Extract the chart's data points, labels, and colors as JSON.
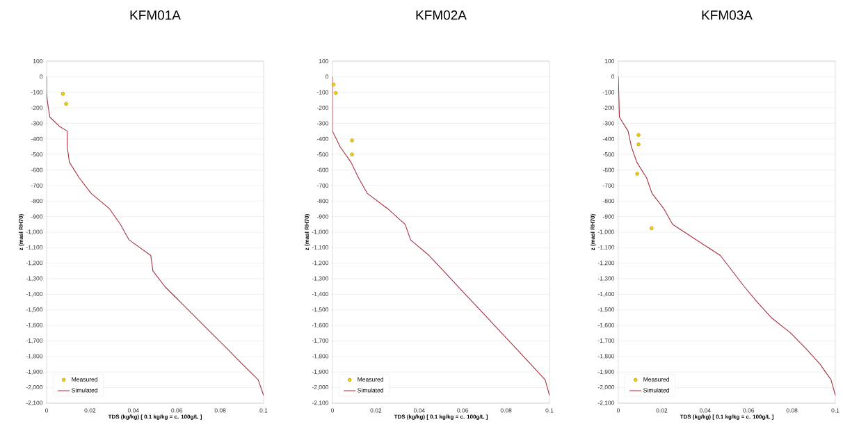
{
  "chart_data": [
    {
      "type": "line",
      "title": "KFM01A",
      "xlabel": "TDS (kg/kg)    [ 0.1 kg/kg = c. 100g/L ]",
      "ylabel": "z (masl RH70)",
      "xlim": [
        0,
        0.1
      ],
      "ylim": [
        -2100,
        100
      ],
      "xticks": [
        0,
        0.02,
        0.04,
        0.06,
        0.08,
        0.1
      ],
      "yticks": [
        {
          "value": -2100,
          "label": "-2,100"
        },
        {
          "value": -2000,
          "label": "-2,000"
        },
        {
          "value": -1900,
          "label": "-1,900"
        },
        {
          "value": -1800,
          "label": "-1,800"
        },
        {
          "value": -1700,
          "label": "-1,700"
        },
        {
          "value": -1600,
          "label": "-1,600"
        },
        {
          "value": -1500,
          "label": "-1,500"
        },
        {
          "value": -1400,
          "label": "-1,400"
        },
        {
          "value": -1300,
          "label": "-1,300"
        },
        {
          "value": -1200,
          "label": "-1,200"
        },
        {
          "value": -1100,
          "label": "-1,100"
        },
        {
          "value": -1000,
          "label": "-1,000"
        },
        -900,
        -800,
        -700,
        -600,
        -500,
        -400,
        -300,
        -200,
        -100,
        0,
        100
      ],
      "grid": "y",
      "legend": "bottom left",
      "series": [
        {
          "name": "Measured",
          "type": "scatter",
          "marker": "circle",
          "color": "#f5d000",
          "x": [
            0.0075,
            0.009
          ],
          "values": [
            -110,
            -175
          ]
        },
        {
          "name": "Simulated",
          "type": "line",
          "marker": "none",
          "color": "#a3303f",
          "x": [
            0,
            0,
            0.0003,
            0.0008,
            0.0015,
            0.006,
            0.0095,
            0.0095,
            0.0105,
            0.015,
            0.0205,
            0.029,
            0.034,
            0.038,
            0.048,
            0.049,
            0.0545,
            0.0617,
            0.0688,
            0.076,
            0.0832,
            0.0903,
            0.0975,
            0.1
          ],
          "values": [
            0,
            -100,
            -150,
            -200,
            -260,
            -320,
            -350,
            -450,
            -550,
            -650,
            -750,
            -850,
            -950,
            -1050,
            -1150,
            -1250,
            -1350,
            -1450,
            -1550,
            -1650,
            -1750,
            -1850,
            -1950,
            -2050
          ]
        }
      ]
    },
    {
      "type": "line",
      "title": "KFM02A",
      "xlabel": "TDS (kg/kg)    [ 0.1 kg/kg = c. 100g/L ]",
      "ylabel": "z (masl RH70)",
      "xlim": [
        0,
        0.1
      ],
      "ylim": [
        -2100,
        100
      ],
      "xticks": [
        0,
        0.02,
        0.04,
        0.06,
        0.08,
        0.1
      ],
      "yticks": [
        {
          "value": -2100,
          "label": "-2,100"
        },
        {
          "value": -2000,
          "label": "-2,000"
        },
        {
          "value": -1900,
          "label": "-1,900"
        },
        {
          "value": -1800,
          "label": "-1,800"
        },
        {
          "value": -1700,
          "label": "-1,700"
        },
        {
          "value": -1600,
          "label": "-1,600"
        },
        {
          "value": -1500,
          "label": "-1,500"
        },
        {
          "value": -1400,
          "label": "-1,400"
        },
        {
          "value": -1300,
          "label": "-1,300"
        },
        {
          "value": -1200,
          "label": "-1,200"
        },
        {
          "value": -1100,
          "label": "-1,100"
        },
        {
          "value": -1000,
          "label": "-1,000"
        },
        -900,
        -800,
        -700,
        -600,
        -500,
        -400,
        -300,
        -200,
        -100,
        0,
        100
      ],
      "grid": "y",
      "legend": "bottom left",
      "series": [
        {
          "name": "Measured",
          "type": "scatter",
          "marker": "circle",
          "color": "#f5d000",
          "x": [
            0.0005,
            0.0015,
            0.009,
            0.009
          ],
          "values": [
            -50,
            -105,
            -410,
            -500
          ]
        },
        {
          "name": "Simulated",
          "type": "line",
          "marker": "none",
          "color": "#a3303f",
          "x": [
            0,
            0,
            0.0035,
            0.0085,
            0.012,
            0.016,
            0.0255,
            0.0335,
            0.036,
            0.0445,
            0.0512,
            0.0579,
            0.0646,
            0.0713,
            0.078,
            0.0847,
            0.0914,
            0.098,
            0.1
          ],
          "values": [
            0,
            -350,
            -450,
            -550,
            -650,
            -750,
            -850,
            -950,
            -1050,
            -1150,
            -1250,
            -1350,
            -1450,
            -1550,
            -1650,
            -1750,
            -1850,
            -1950,
            -2050
          ]
        }
      ]
    },
    {
      "type": "line",
      "title": "KFM03A",
      "xlabel": "TDS (kg/kg)    [ 0.1 kg/kg = c. 100g/L ]",
      "ylabel": "z (masl RH70)",
      "xlim": [
        0,
        0.1
      ],
      "ylim": [
        -2100,
        100
      ],
      "xticks": [
        0,
        0.02,
        0.04,
        0.06,
        0.08,
        0.1
      ],
      "yticks": [
        {
          "value": -2100,
          "label": "-2,100"
        },
        {
          "value": -2000,
          "label": "-2,000"
        },
        {
          "value": -1900,
          "label": "-1,900"
        },
        {
          "value": -1800,
          "label": "-1,800"
        },
        {
          "value": -1700,
          "label": "-1,700"
        },
        {
          "value": -1600,
          "label": "-1,600"
        },
        {
          "value": -1500,
          "label": "-1,500"
        },
        {
          "value": -1400,
          "label": "-1,400"
        },
        {
          "value": -1300,
          "label": "-1,300"
        },
        {
          "value": -1200,
          "label": "-1,200"
        },
        {
          "value": -1100,
          "label": "-1,100"
        },
        {
          "value": -1000,
          "label": "-1,000"
        },
        -900,
        -800,
        -700,
        -600,
        -500,
        -400,
        -300,
        -200,
        -100,
        0,
        100
      ],
      "grid": "y",
      "legend": "bottom left",
      "series": [
        {
          "name": "Measured",
          "type": "scatter",
          "marker": "circle",
          "color": "#f5d000",
          "x": [
            0.0093,
            0.0093,
            0.0087,
            0.0153
          ],
          "values": [
            -375,
            -435,
            -625,
            -975
          ]
        },
        {
          "name": "Simulated",
          "type": "line",
          "marker": "none",
          "color": "#a3303f",
          "x": [
            0,
            0.0005,
            0.0045,
            0.006,
            0.0085,
            0.013,
            0.0155,
            0.021,
            0.025,
            0.036,
            0.047,
            0.0525,
            0.058,
            0.064,
            0.0705,
            0.0795,
            0.0865,
            0.093,
            0.098,
            0.1
          ],
          "values": [
            0,
            -260,
            -350,
            -450,
            -550,
            -650,
            -750,
            -850,
            -950,
            -1050,
            -1150,
            -1250,
            -1350,
            -1450,
            -1550,
            -1650,
            -1750,
            -1850,
            -1950,
            -2050
          ]
        }
      ]
    }
  ]
}
